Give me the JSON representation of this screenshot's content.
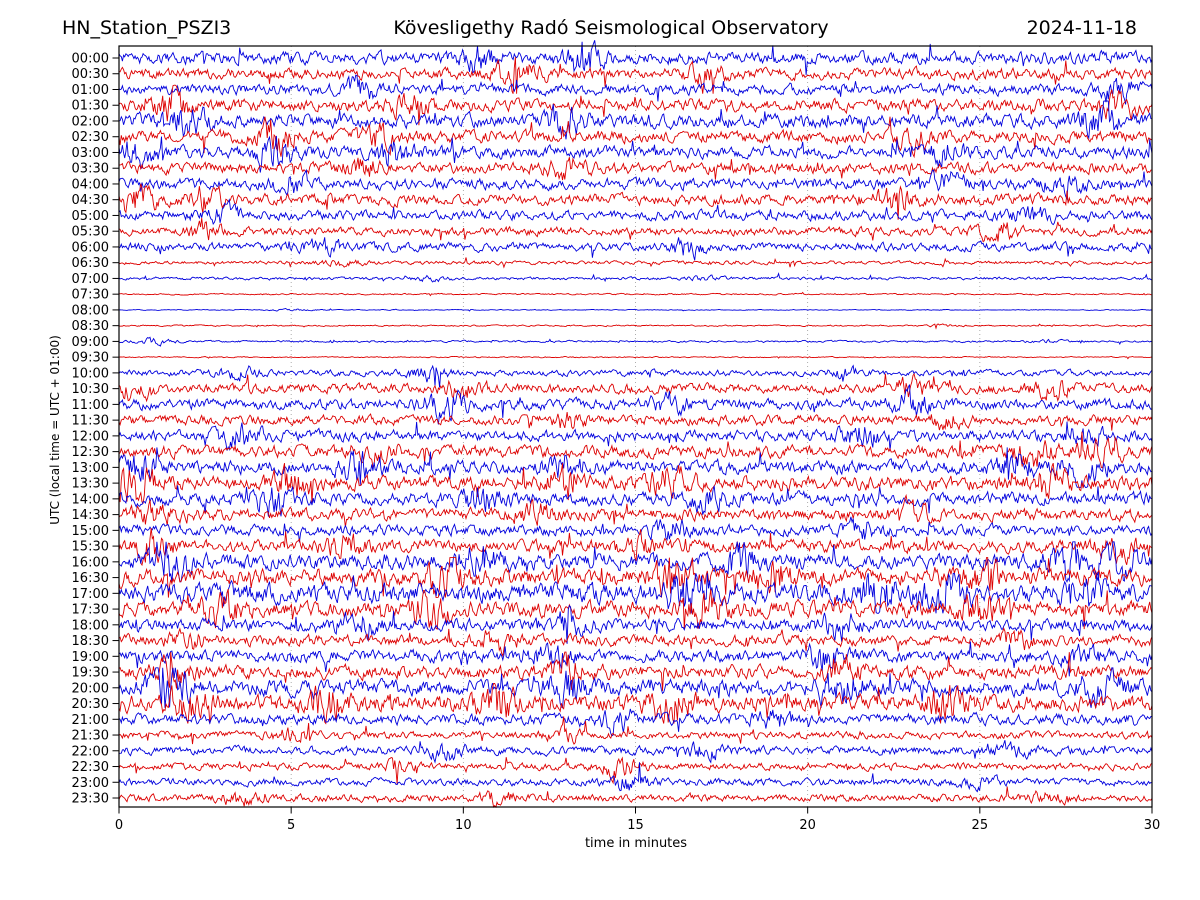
{
  "header": {
    "station": "HN_Station_PSZI3",
    "observatory": "Kövesligethy Radó Seismological Observatory",
    "date": "2024-11-18"
  },
  "chart_data": {
    "type": "line",
    "subtype": "helicorder-seismogram-day-plot",
    "title": "HN_Station_PSZI3 — Kövesligethy Radó Seismological Observatory — 2024-11-18",
    "xlabel": "time in minutes",
    "ylabel": "UTC (local time = UTC + 01:00)",
    "x_range": [
      0,
      30
    ],
    "x_ticks": [
      0,
      5,
      10,
      15,
      20,
      25,
      30
    ],
    "grid_minutes": [
      5,
      10,
      15,
      20,
      25
    ],
    "grid_style": "dotted",
    "minutes_per_row": 30,
    "trace_colors": {
      "blue": "#0000dd",
      "red": "#dd0000"
    },
    "rows": [
      {
        "time": "00:00",
        "color": "blue",
        "amp": 5.0,
        "bursts": [
          [
            10.5,
            1.8
          ],
          [
            13.5,
            2.5
          ]
        ]
      },
      {
        "time": "00:30",
        "color": "red",
        "amp": 4.5,
        "bursts": [
          [
            11.5,
            2.5
          ],
          [
            17.0,
            1.5
          ]
        ]
      },
      {
        "time": "01:00",
        "color": "blue",
        "amp": 4.5,
        "bursts": [
          [
            7.0,
            1.6
          ],
          [
            29.0,
            1.8
          ]
        ]
      },
      {
        "time": "01:30",
        "color": "red",
        "amp": 5.0,
        "bursts": [
          [
            1.5,
            2.2
          ],
          [
            8.5,
            2.0
          ],
          [
            29.0,
            2.0
          ]
        ]
      },
      {
        "time": "02:00",
        "color": "blue",
        "amp": 5.5,
        "bursts": [
          [
            2.0,
            1.8
          ],
          [
            13.0,
            1.8
          ],
          [
            28.5,
            2.2
          ]
        ]
      },
      {
        "time": "02:30",
        "color": "red",
        "amp": 5.0,
        "bursts": [
          [
            4.5,
            2.4
          ],
          [
            7.5,
            1.8
          ],
          [
            23.0,
            1.5
          ]
        ]
      },
      {
        "time": "03:00",
        "color": "blue",
        "amp": 5.0,
        "bursts": [
          [
            0.5,
            2.0
          ],
          [
            4.5,
            2.2
          ],
          [
            8.0,
            1.8
          ],
          [
            24.0,
            1.6
          ]
        ]
      },
      {
        "time": "03:30",
        "color": "red",
        "amp": 4.5,
        "bursts": [
          [
            7.0,
            1.6
          ],
          [
            13.0,
            1.5
          ]
        ]
      },
      {
        "time": "04:00",
        "color": "blue",
        "amp": 4.5,
        "bursts": [
          [
            5.0,
            1.7
          ],
          [
            24.0,
            1.6
          ],
          [
            27.5,
            1.7
          ]
        ]
      },
      {
        "time": "04:30",
        "color": "red",
        "amp": 4.5,
        "bursts": [
          [
            0.5,
            2.2
          ],
          [
            2.5,
            1.8
          ],
          [
            22.5,
            1.6
          ]
        ]
      },
      {
        "time": "05:00",
        "color": "blue",
        "amp": 4.0,
        "bursts": [
          [
            3.0,
            1.5
          ],
          [
            26.5,
            1.5
          ]
        ]
      },
      {
        "time": "05:30",
        "color": "red",
        "amp": 3.5,
        "bursts": [
          [
            2.5,
            1.5
          ],
          [
            25.5,
            2.0
          ]
        ]
      },
      {
        "time": "06:00",
        "color": "blue",
        "amp": 3.5,
        "bursts": [
          [
            6.0,
            1.4
          ],
          [
            16.5,
            2.0
          ]
        ]
      },
      {
        "time": "06:30",
        "color": "red",
        "amp": 1.5,
        "bursts": [
          [
            6.5,
            1.5
          ]
        ]
      },
      {
        "time": "07:00",
        "color": "blue",
        "amp": 1.2,
        "bursts": [
          [
            9.0,
            1.5
          ],
          [
            17.0,
            1.4
          ]
        ]
      },
      {
        "time": "07:30",
        "color": "red",
        "amp": 0.6,
        "bursts": []
      },
      {
        "time": "08:00",
        "color": "blue",
        "amp": 0.35,
        "bursts": [
          [
            5.0,
            2.0
          ]
        ]
      },
      {
        "time": "08:30",
        "color": "red",
        "amp": 0.6,
        "bursts": [
          [
            24.0,
            1.5
          ]
        ]
      },
      {
        "time": "09:00",
        "color": "blue",
        "amp": 0.8,
        "bursts": [
          [
            1.0,
            3.0
          ],
          [
            27.0,
            1.5
          ]
        ]
      },
      {
        "time": "09:30",
        "color": "red",
        "amp": 0.5,
        "bursts": []
      },
      {
        "time": "10:00",
        "color": "blue",
        "amp": 2.5,
        "bursts": [
          [
            3.5,
            1.8
          ],
          [
            9.0,
            2.2
          ],
          [
            21.0,
            1.5
          ]
        ]
      },
      {
        "time": "10:30",
        "color": "red",
        "amp": 4.0,
        "bursts": [
          [
            0.5,
            1.8
          ],
          [
            10.0,
            1.6
          ],
          [
            23.0,
            1.8
          ],
          [
            27.0,
            1.6
          ]
        ]
      },
      {
        "time": "11:00",
        "color": "blue",
        "amp": 4.5,
        "bursts": [
          [
            9.5,
            2.4
          ],
          [
            16.0,
            1.6
          ],
          [
            23.0,
            1.8
          ]
        ]
      },
      {
        "time": "11:30",
        "color": "red",
        "amp": 4.0,
        "bursts": [
          [
            13.0,
            1.6
          ],
          [
            24.0,
            1.5
          ]
        ]
      },
      {
        "time": "12:00",
        "color": "blue",
        "amp": 4.5,
        "bursts": [
          [
            3.5,
            2.0
          ],
          [
            21.5,
            1.8
          ],
          [
            28.0,
            1.6
          ]
        ]
      },
      {
        "time": "12:30",
        "color": "red",
        "amp": 5.0,
        "bursts": [
          [
            7.5,
            1.6
          ],
          [
            26.5,
            2.2
          ],
          [
            28.5,
            2.0
          ]
        ]
      },
      {
        "time": "13:00",
        "color": "blue",
        "amp": 5.5,
        "bursts": [
          [
            0.5,
            2.0
          ],
          [
            7.0,
            1.8
          ],
          [
            13.0,
            1.8
          ],
          [
            26.0,
            2.0
          ],
          [
            28.0,
            1.9
          ]
        ]
      },
      {
        "time": "13:30",
        "color": "red",
        "amp": 6.0,
        "bursts": [
          [
            0.5,
            2.2
          ],
          [
            5.0,
            2.0
          ],
          [
            13.0,
            2.0
          ],
          [
            16.0,
            1.8
          ],
          [
            27.0,
            1.8
          ]
        ]
      },
      {
        "time": "14:00",
        "color": "blue",
        "amp": 5.5,
        "bursts": [
          [
            4.5,
            2.0
          ],
          [
            10.5,
            1.7
          ],
          [
            17.0,
            1.6
          ]
        ]
      },
      {
        "time": "14:30",
        "color": "red",
        "amp": 5.0,
        "bursts": [
          [
            1.0,
            1.6
          ],
          [
            12.0,
            1.5
          ],
          [
            23.0,
            1.5
          ]
        ]
      },
      {
        "time": "15:00",
        "color": "blue",
        "amp": 4.5,
        "bursts": [
          [
            16.0,
            1.5
          ],
          [
            21.5,
            1.6
          ]
        ]
      },
      {
        "time": "15:30",
        "color": "red",
        "amp": 5.0,
        "bursts": [
          [
            1.0,
            2.2
          ],
          [
            6.5,
            1.7
          ],
          [
            15.0,
            1.6
          ],
          [
            29.0,
            1.8
          ]
        ]
      },
      {
        "time": "16:00",
        "color": "blue",
        "amp": 6.5,
        "bursts": [
          [
            1.5,
            2.2
          ],
          [
            10.5,
            2.0
          ],
          [
            18.0,
            1.8
          ],
          [
            27.5,
            2.2
          ],
          [
            29.0,
            2.0
          ]
        ]
      },
      {
        "time": "16:30",
        "color": "red",
        "amp": 7.0,
        "bursts": [
          [
            9.5,
            2.0
          ],
          [
            16.0,
            2.0
          ],
          [
            19.0,
            1.9
          ],
          [
            25.0,
            1.7
          ]
        ]
      },
      {
        "time": "17:00",
        "color": "blue",
        "amp": 8.0,
        "bursts": [
          [
            16.5,
            2.2
          ],
          [
            22.0,
            2.0
          ],
          [
            24.0,
            2.0
          ],
          [
            28.0,
            1.8
          ]
        ]
      },
      {
        "time": "17:30",
        "color": "red",
        "amp": 6.5,
        "bursts": [
          [
            3.0,
            1.7
          ],
          [
            9.0,
            1.8
          ],
          [
            17.0,
            1.7
          ],
          [
            25.0,
            1.6
          ]
        ]
      },
      {
        "time": "18:00",
        "color": "blue",
        "amp": 5.0,
        "bursts": [
          [
            7.0,
            1.8
          ],
          [
            13.0,
            1.5
          ],
          [
            21.0,
            1.8
          ]
        ]
      },
      {
        "time": "18:30",
        "color": "red",
        "amp": 4.5,
        "bursts": [
          [
            2.0,
            1.5
          ],
          [
            11.0,
            1.5
          ],
          [
            26.0,
            1.4
          ]
        ]
      },
      {
        "time": "19:00",
        "color": "blue",
        "amp": 5.0,
        "bursts": [
          [
            12.5,
            1.8
          ],
          [
            20.5,
            1.8
          ],
          [
            28.0,
            1.6
          ]
        ]
      },
      {
        "time": "19:30",
        "color": "red",
        "amp": 5.5,
        "bursts": [
          [
            1.5,
            1.8
          ],
          [
            13.0,
            2.0
          ],
          [
            21.0,
            1.8
          ]
        ]
      },
      {
        "time": "20:00",
        "color": "blue",
        "amp": 6.5,
        "bursts": [
          [
            1.5,
            2.2
          ],
          [
            13.0,
            1.8
          ],
          [
            21.0,
            2.0
          ],
          [
            28.5,
            2.0
          ]
        ]
      },
      {
        "time": "20:30",
        "color": "red",
        "amp": 7.0,
        "bursts": [
          [
            2.0,
            1.8
          ],
          [
            6.0,
            1.8
          ],
          [
            11.0,
            1.8
          ],
          [
            16.0,
            1.8
          ],
          [
            24.0,
            1.7
          ]
        ]
      },
      {
        "time": "21:00",
        "color": "blue",
        "amp": 4.5,
        "bursts": [
          [
            14.5,
            1.8
          ],
          [
            19.0,
            1.5
          ]
        ]
      },
      {
        "time": "21:30",
        "color": "red",
        "amp": 3.0,
        "bursts": [
          [
            5.0,
            1.6
          ],
          [
            13.0,
            1.4
          ]
        ]
      },
      {
        "time": "22:00",
        "color": "blue",
        "amp": 3.5,
        "bursts": [
          [
            9.5,
            1.7
          ],
          [
            17.0,
            1.5
          ],
          [
            26.0,
            1.4
          ]
        ]
      },
      {
        "time": "22:30",
        "color": "red",
        "amp": 3.0,
        "bursts": [
          [
            8.0,
            1.4
          ],
          [
            14.5,
            2.4
          ]
        ]
      },
      {
        "time": "23:00",
        "color": "blue",
        "amp": 3.0,
        "bursts": [
          [
            14.8,
            2.2
          ],
          [
            25.0,
            1.4
          ]
        ]
      },
      {
        "time": "23:30",
        "color": "red",
        "amp": 3.0,
        "bursts": [
          [
            3.5,
            1.6
          ],
          [
            11.0,
            1.4
          ],
          [
            27.0,
            1.3
          ]
        ]
      }
    ]
  }
}
